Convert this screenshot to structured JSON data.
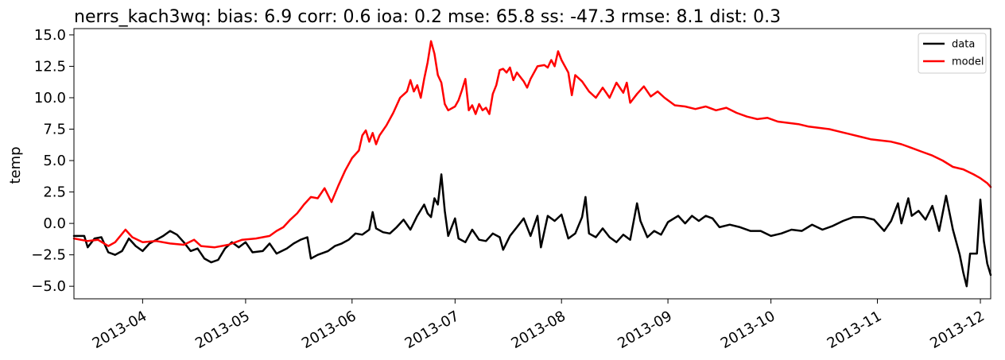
{
  "chart_data": {
    "type": "line",
    "title": "nerrs_kach3wq: bias: 6.9  corr: 0.6  ioa: 0.2  mse: 65.8  ss: -47.3  rmse: 8.1  dist: 0.3",
    "xlabel": "",
    "ylabel": "temp",
    "x_range": [
      "2013-03-12",
      "2013-12-04"
    ],
    "ylim": [
      -6.0,
      15.5
    ],
    "yticks": [
      "−5.0",
      "−2.5",
      "0.0",
      "2.5",
      "5.0",
      "7.5",
      "10.0",
      "12.5",
      "15.0"
    ],
    "ytick_values": [
      -5.0,
      -2.5,
      0.0,
      2.5,
      5.0,
      7.5,
      10.0,
      12.5,
      15.0
    ],
    "xticks": [
      "2013-04",
      "2013-05",
      "2013-06",
      "2013-07",
      "2013-08",
      "2013-09",
      "2013-10",
      "2013-11",
      "2013-12"
    ],
    "xtick_dates": [
      "2013-04-01",
      "2013-05-01",
      "2013-06-01",
      "2013-07-01",
      "2013-08-01",
      "2013-09-01",
      "2013-10-01",
      "2013-11-01",
      "2013-12-01"
    ],
    "grid": false,
    "legend": {
      "placement": "top-right",
      "entries": [
        "data",
        "model"
      ]
    },
    "series": [
      {
        "name": "data",
        "color": "#000000",
        "points": [
          [
            "2013-03-12",
            -1.0
          ],
          [
            "2013-03-15",
            -1.0
          ],
          [
            "2013-03-16",
            -1.9
          ],
          [
            "2013-03-18",
            -1.2
          ],
          [
            "2013-03-20",
            -1.1
          ],
          [
            "2013-03-22",
            -2.3
          ],
          [
            "2013-03-24",
            -2.5
          ],
          [
            "2013-03-26",
            -2.2
          ],
          [
            "2013-03-28",
            -1.2
          ],
          [
            "2013-03-30",
            -1.8
          ],
          [
            "2013-04-01",
            -2.2
          ],
          [
            "2013-04-03",
            -1.6
          ],
          [
            "2013-04-05",
            -1.3
          ],
          [
            "2013-04-07",
            -1.0
          ],
          [
            "2013-04-09",
            -0.6
          ],
          [
            "2013-04-11",
            -0.9
          ],
          [
            "2013-04-13",
            -1.5
          ],
          [
            "2013-04-15",
            -2.2
          ],
          [
            "2013-04-17",
            -2.0
          ],
          [
            "2013-04-19",
            -2.8
          ],
          [
            "2013-04-21",
            -3.1
          ],
          [
            "2013-04-23",
            -2.9
          ],
          [
            "2013-04-25",
            -2.0
          ],
          [
            "2013-04-27",
            -1.5
          ],
          [
            "2013-04-29",
            -1.9
          ],
          [
            "2013-05-01",
            -1.5
          ],
          [
            "2013-05-03",
            -2.3
          ],
          [
            "2013-05-06",
            -2.2
          ],
          [
            "2013-05-08",
            -1.6
          ],
          [
            "2013-05-10",
            -2.4
          ],
          [
            "2013-05-13",
            -2.0
          ],
          [
            "2013-05-15",
            -1.6
          ],
          [
            "2013-05-17",
            -1.3
          ],
          [
            "2013-05-19",
            -1.1
          ],
          [
            "2013-05-20",
            -2.8
          ],
          [
            "2013-05-22",
            -2.5
          ],
          [
            "2013-05-25",
            -2.2
          ],
          [
            "2013-05-27",
            -1.8
          ],
          [
            "2013-05-29",
            -1.6
          ],
          [
            "2013-05-31",
            -1.3
          ],
          [
            "2013-06-02",
            -0.8
          ],
          [
            "2013-06-04",
            -0.9
          ],
          [
            "2013-06-06",
            -0.5
          ],
          [
            "2013-06-07",
            0.9
          ],
          [
            "2013-06-08",
            -0.4
          ],
          [
            "2013-06-10",
            -0.7
          ],
          [
            "2013-06-12",
            -0.8
          ],
          [
            "2013-06-14",
            -0.3
          ],
          [
            "2013-06-16",
            0.3
          ],
          [
            "2013-06-18",
            -0.5
          ],
          [
            "2013-06-20",
            0.6
          ],
          [
            "2013-06-22",
            1.5
          ],
          [
            "2013-06-23",
            0.8
          ],
          [
            "2013-06-24",
            0.5
          ],
          [
            "2013-06-25",
            2.0
          ],
          [
            "2013-06-26",
            1.5
          ],
          [
            "2013-06-27",
            3.9
          ],
          [
            "2013-06-28",
            1.0
          ],
          [
            "2013-06-29",
            -1.0
          ],
          [
            "2013-07-01",
            0.4
          ],
          [
            "2013-07-02",
            -1.2
          ],
          [
            "2013-07-04",
            -1.5
          ],
          [
            "2013-07-06",
            -0.5
          ],
          [
            "2013-07-08",
            -1.3
          ],
          [
            "2013-07-10",
            -1.4
          ],
          [
            "2013-07-12",
            -0.8
          ],
          [
            "2013-07-14",
            -1.1
          ],
          [
            "2013-07-15",
            -2.1
          ],
          [
            "2013-07-17",
            -1.0
          ],
          [
            "2013-07-19",
            -0.3
          ],
          [
            "2013-07-21",
            0.4
          ],
          [
            "2013-07-23",
            -1.0
          ],
          [
            "2013-07-25",
            0.6
          ],
          [
            "2013-07-26",
            -1.9
          ],
          [
            "2013-07-28",
            0.6
          ],
          [
            "2013-07-30",
            0.2
          ],
          [
            "2013-08-01",
            0.7
          ],
          [
            "2013-08-03",
            -1.2
          ],
          [
            "2013-08-05",
            -0.8
          ],
          [
            "2013-08-07",
            0.5
          ],
          [
            "2013-08-08",
            2.1
          ],
          [
            "2013-08-09",
            -0.8
          ],
          [
            "2013-08-11",
            -1.1
          ],
          [
            "2013-08-13",
            -0.4
          ],
          [
            "2013-08-15",
            -1.1
          ],
          [
            "2013-08-17",
            -1.5
          ],
          [
            "2013-08-19",
            -0.9
          ],
          [
            "2013-08-21",
            -1.3
          ],
          [
            "2013-08-23",
            1.6
          ],
          [
            "2013-08-24",
            0.2
          ],
          [
            "2013-08-26",
            -1.1
          ],
          [
            "2013-08-28",
            -0.6
          ],
          [
            "2013-08-30",
            -0.9
          ],
          [
            "2013-09-01",
            0.1
          ],
          [
            "2013-09-04",
            0.6
          ],
          [
            "2013-09-06",
            0.0
          ],
          [
            "2013-09-08",
            0.6
          ],
          [
            "2013-09-10",
            0.2
          ],
          [
            "2013-09-12",
            0.6
          ],
          [
            "2013-09-14",
            0.4
          ],
          [
            "2013-09-16",
            -0.3
          ],
          [
            "2013-09-19",
            -0.1
          ],
          [
            "2013-09-22",
            -0.3
          ],
          [
            "2013-09-25",
            -0.6
          ],
          [
            "2013-09-28",
            -0.6
          ],
          [
            "2013-10-01",
            -1.0
          ],
          [
            "2013-10-04",
            -0.8
          ],
          [
            "2013-10-07",
            -0.5
          ],
          [
            "2013-10-10",
            -0.6
          ],
          [
            "2013-10-13",
            -0.1
          ],
          [
            "2013-10-16",
            -0.5
          ],
          [
            "2013-10-19",
            -0.2
          ],
          [
            "2013-10-22",
            0.2
          ],
          [
            "2013-10-25",
            0.5
          ],
          [
            "2013-10-28",
            0.5
          ],
          [
            "2013-10-31",
            0.3
          ],
          [
            "2013-11-03",
            -0.6
          ],
          [
            "2013-11-05",
            0.2
          ],
          [
            "2013-11-07",
            1.6
          ],
          [
            "2013-11-08",
            0.0
          ],
          [
            "2013-11-10",
            2.0
          ],
          [
            "2013-11-11",
            0.6
          ],
          [
            "2013-11-13",
            1.0
          ],
          [
            "2013-11-15",
            0.3
          ],
          [
            "2013-11-17",
            1.4
          ],
          [
            "2013-11-19",
            -0.6
          ],
          [
            "2013-11-21",
            2.2
          ],
          [
            "2013-11-23",
            -0.5
          ],
          [
            "2013-11-25",
            -2.5
          ],
          [
            "2013-11-26",
            -3.9
          ],
          [
            "2013-11-27",
            -5.0
          ],
          [
            "2013-11-28",
            -2.4
          ],
          [
            "2013-11-30",
            -2.4
          ],
          [
            "2013-12-01",
            1.9
          ],
          [
            "2013-12-02",
            -1.4
          ],
          [
            "2013-12-03",
            -3.2
          ],
          [
            "2013-12-04",
            -4.1
          ]
        ]
      },
      {
        "name": "model",
        "color": "#ff0000",
        "points": [
          [
            "2013-03-12",
            -1.2
          ],
          [
            "2013-03-16",
            -1.4
          ],
          [
            "2013-03-19",
            -1.3
          ],
          [
            "2013-03-22",
            -1.8
          ],
          [
            "2013-03-24",
            -1.5
          ],
          [
            "2013-03-27",
            -0.5
          ],
          [
            "2013-03-29",
            -1.1
          ],
          [
            "2013-04-01",
            -1.5
          ],
          [
            "2013-04-05",
            -1.4
          ],
          [
            "2013-04-09",
            -1.6
          ],
          [
            "2013-04-13",
            -1.7
          ],
          [
            "2013-04-16",
            -1.3
          ],
          [
            "2013-04-18",
            -1.8
          ],
          [
            "2013-04-22",
            -1.9
          ],
          [
            "2013-04-26",
            -1.7
          ],
          [
            "2013-04-30",
            -1.3
          ],
          [
            "2013-05-04",
            -1.2
          ],
          [
            "2013-05-08",
            -1.0
          ],
          [
            "2013-05-10",
            -0.6
          ],
          [
            "2013-05-12",
            -0.3
          ],
          [
            "2013-05-14",
            0.3
          ],
          [
            "2013-05-16",
            0.8
          ],
          [
            "2013-05-18",
            1.5
          ],
          [
            "2013-05-20",
            2.1
          ],
          [
            "2013-05-22",
            2.0
          ],
          [
            "2013-05-24",
            2.8
          ],
          [
            "2013-05-26",
            1.7
          ],
          [
            "2013-05-28",
            3.0
          ],
          [
            "2013-05-30",
            4.2
          ],
          [
            "2013-06-01",
            5.2
          ],
          [
            "2013-06-03",
            5.8
          ],
          [
            "2013-06-04",
            7.0
          ],
          [
            "2013-06-05",
            7.4
          ],
          [
            "2013-06-06",
            6.5
          ],
          [
            "2013-06-07",
            7.2
          ],
          [
            "2013-06-08",
            6.3
          ],
          [
            "2013-06-09",
            7.0
          ],
          [
            "2013-06-11",
            7.8
          ],
          [
            "2013-06-13",
            8.8
          ],
          [
            "2013-06-15",
            10.0
          ],
          [
            "2013-06-17",
            10.5
          ],
          [
            "2013-06-18",
            11.4
          ],
          [
            "2013-06-19",
            10.5
          ],
          [
            "2013-06-20",
            11.0
          ],
          [
            "2013-06-21",
            10.0
          ],
          [
            "2013-06-22",
            11.5
          ],
          [
            "2013-06-23",
            12.8
          ],
          [
            "2013-06-24",
            14.5
          ],
          [
            "2013-06-25",
            13.5
          ],
          [
            "2013-06-26",
            11.8
          ],
          [
            "2013-06-27",
            11.2
          ],
          [
            "2013-06-28",
            9.5
          ],
          [
            "2013-06-29",
            9.0
          ],
          [
            "2013-07-01",
            9.3
          ],
          [
            "2013-07-02",
            9.8
          ],
          [
            "2013-07-03",
            10.6
          ],
          [
            "2013-07-04",
            11.5
          ],
          [
            "2013-07-05",
            9.0
          ],
          [
            "2013-07-06",
            9.4
          ],
          [
            "2013-07-07",
            8.7
          ],
          [
            "2013-07-08",
            9.5
          ],
          [
            "2013-07-09",
            9.0
          ],
          [
            "2013-07-10",
            9.2
          ],
          [
            "2013-07-11",
            8.7
          ],
          [
            "2013-07-12",
            10.3
          ],
          [
            "2013-07-13",
            11.0
          ],
          [
            "2013-07-14",
            12.2
          ],
          [
            "2013-07-15",
            12.3
          ],
          [
            "2013-07-16",
            12.0
          ],
          [
            "2013-07-17",
            12.4
          ],
          [
            "2013-07-18",
            11.4
          ],
          [
            "2013-07-19",
            12.0
          ],
          [
            "2013-07-21",
            11.3
          ],
          [
            "2013-07-22",
            10.8
          ],
          [
            "2013-07-23",
            11.5
          ],
          [
            "2013-07-25",
            12.5
          ],
          [
            "2013-07-27",
            12.6
          ],
          [
            "2013-07-28",
            12.4
          ],
          [
            "2013-07-29",
            13.0
          ],
          [
            "2013-07-30",
            12.5
          ],
          [
            "2013-07-31",
            13.7
          ],
          [
            "2013-08-01",
            13.0
          ],
          [
            "2013-08-03",
            12.0
          ],
          [
            "2013-08-04",
            10.2
          ],
          [
            "2013-08-05",
            11.8
          ],
          [
            "2013-08-07",
            11.3
          ],
          [
            "2013-08-09",
            10.5
          ],
          [
            "2013-08-11",
            10.0
          ],
          [
            "2013-08-13",
            10.8
          ],
          [
            "2013-08-15",
            10.0
          ],
          [
            "2013-08-17",
            11.2
          ],
          [
            "2013-08-19",
            10.4
          ],
          [
            "2013-08-20",
            11.2
          ],
          [
            "2013-08-21",
            9.6
          ],
          [
            "2013-08-23",
            10.3
          ],
          [
            "2013-08-25",
            10.9
          ],
          [
            "2013-08-27",
            10.1
          ],
          [
            "2013-08-29",
            10.5
          ],
          [
            "2013-08-31",
            10.0
          ],
          [
            "2013-09-03",
            9.4
          ],
          [
            "2013-09-06",
            9.3
          ],
          [
            "2013-09-09",
            9.1
          ],
          [
            "2013-09-12",
            9.3
          ],
          [
            "2013-09-15",
            9.0
          ],
          [
            "2013-09-18",
            9.2
          ],
          [
            "2013-09-21",
            8.8
          ],
          [
            "2013-09-24",
            8.5
          ],
          [
            "2013-09-27",
            8.3
          ],
          [
            "2013-09-30",
            8.4
          ],
          [
            "2013-10-03",
            8.1
          ],
          [
            "2013-10-06",
            8.0
          ],
          [
            "2013-10-09",
            7.9
          ],
          [
            "2013-10-12",
            7.7
          ],
          [
            "2013-10-15",
            7.6
          ],
          [
            "2013-10-18",
            7.5
          ],
          [
            "2013-10-21",
            7.3
          ],
          [
            "2013-10-24",
            7.1
          ],
          [
            "2013-10-27",
            6.9
          ],
          [
            "2013-10-30",
            6.7
          ],
          [
            "2013-11-02",
            6.6
          ],
          [
            "2013-11-05",
            6.5
          ],
          [
            "2013-11-08",
            6.3
          ],
          [
            "2013-11-11",
            6.0
          ],
          [
            "2013-11-14",
            5.7
          ],
          [
            "2013-11-17",
            5.4
          ],
          [
            "2013-11-20",
            5.0
          ],
          [
            "2013-11-23",
            4.5
          ],
          [
            "2013-11-26",
            4.3
          ],
          [
            "2013-11-29",
            3.9
          ],
          [
            "2013-12-01",
            3.6
          ],
          [
            "2013-12-03",
            3.2
          ],
          [
            "2013-12-04",
            2.9
          ]
        ]
      }
    ]
  }
}
